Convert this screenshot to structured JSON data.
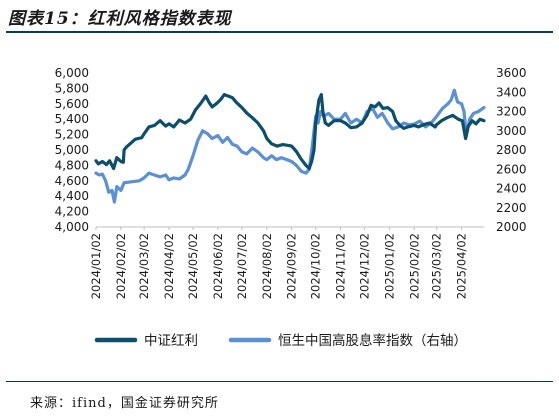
{
  "header": {
    "title": "图表15：红利风格指数表现"
  },
  "footer": {
    "source": "来源：ifind，国金证券研究所"
  },
  "chart_data": {
    "type": "line",
    "title": "图表15：红利风格指数表现",
    "x_ticks": [
      "2024/01/02",
      "2024/02/02",
      "2024/03/02",
      "2024/04/02",
      "2024/05/02",
      "2024/06/02",
      "2024/07/02",
      "2024/08/02",
      "2024/09/02",
      "2024/10/02",
      "2024/11/02",
      "2024/12/02",
      "2025/01/02",
      "2025/02/02",
      "2025/03/02",
      "2025/04/02"
    ],
    "x_range": [
      "2024-01-02",
      "2025-04-30"
    ],
    "left_axis": {
      "ylim": [
        4000,
        6000
      ],
      "ticks": [
        "4,000",
        "4,200",
        "4,400",
        "4,600",
        "4,800",
        "5,000",
        "5,200",
        "5,400",
        "5,600",
        "5,800",
        "6,000"
      ]
    },
    "right_axis": {
      "ylim": [
        2000,
        3600
      ],
      "ticks": [
        "2000",
        "2200",
        "2400",
        "2600",
        "2800",
        "3000",
        "3200",
        "3400",
        "3600"
      ]
    },
    "grid": false,
    "legend_position": "bottom",
    "series": [
      {
        "name": "中证红利",
        "axis": "left",
        "color": "#0b4f6c",
        "points": [
          [
            "2024-01-02",
            4860
          ],
          [
            "2024-01-05",
            4820
          ],
          [
            "2024-01-10",
            4850
          ],
          [
            "2024-01-15",
            4810
          ],
          [
            "2024-01-19",
            4860
          ],
          [
            "2024-01-24",
            4760
          ],
          [
            "2024-01-28",
            4900
          ],
          [
            "2024-02-02",
            4850
          ],
          [
            "2024-02-05",
            4840
          ],
          [
            "2024-02-06",
            5000
          ],
          [
            "2024-02-09",
            5040
          ],
          [
            "2024-02-20",
            5140
          ],
          [
            "2024-02-28",
            5160
          ],
          [
            "2024-03-02",
            5210
          ],
          [
            "2024-03-08",
            5300
          ],
          [
            "2024-03-15",
            5320
          ],
          [
            "2024-03-22",
            5380
          ],
          [
            "2024-03-29",
            5310
          ],
          [
            "2024-04-02",
            5340
          ],
          [
            "2024-04-08",
            5300
          ],
          [
            "2024-04-15",
            5390
          ],
          [
            "2024-04-22",
            5350
          ],
          [
            "2024-04-29",
            5400
          ],
          [
            "2024-05-05",
            5520
          ],
          [
            "2024-05-12",
            5610
          ],
          [
            "2024-05-18",
            5700
          ],
          [
            "2024-05-22",
            5620
          ],
          [
            "2024-05-26",
            5560
          ],
          [
            "2024-05-31",
            5600
          ],
          [
            "2024-06-05",
            5650
          ],
          [
            "2024-06-10",
            5720
          ],
          [
            "2024-06-15",
            5700
          ],
          [
            "2024-06-20",
            5680
          ],
          [
            "2024-06-25",
            5620
          ],
          [
            "2024-07-02",
            5550
          ],
          [
            "2024-07-08",
            5480
          ],
          [
            "2024-07-15",
            5420
          ],
          [
            "2024-07-22",
            5350
          ],
          [
            "2024-07-29",
            5250
          ],
          [
            "2024-08-02",
            5150
          ],
          [
            "2024-08-08",
            5080
          ],
          [
            "2024-08-15",
            5050
          ],
          [
            "2024-08-22",
            5070
          ],
          [
            "2024-08-29",
            5060
          ],
          [
            "2024-09-02",
            5050
          ],
          [
            "2024-09-08",
            4980
          ],
          [
            "2024-09-14",
            4880
          ],
          [
            "2024-09-20",
            4800
          ],
          [
            "2024-09-24",
            4760
          ],
          [
            "2024-09-27",
            4850
          ],
          [
            "2024-09-30",
            5000
          ],
          [
            "2024-10-02",
            5350
          ],
          [
            "2024-10-06",
            5650
          ],
          [
            "2024-10-09",
            5720
          ],
          [
            "2024-10-11",
            5500
          ],
          [
            "2024-10-14",
            5350
          ],
          [
            "2024-10-18",
            5320
          ],
          [
            "2024-10-25",
            5380
          ],
          [
            "2024-11-02",
            5380
          ],
          [
            "2024-11-08",
            5350
          ],
          [
            "2024-11-15",
            5290
          ],
          [
            "2024-11-22",
            5300
          ],
          [
            "2024-11-29",
            5350
          ],
          [
            "2024-12-05",
            5450
          ],
          [
            "2024-12-10",
            5580
          ],
          [
            "2024-12-15",
            5560
          ],
          [
            "2024-12-20",
            5610
          ],
          [
            "2024-12-25",
            5540
          ],
          [
            "2024-12-31",
            5550
          ],
          [
            "2025-01-06",
            5500
          ],
          [
            "2025-01-10",
            5380
          ],
          [
            "2025-01-15",
            5320
          ],
          [
            "2025-01-20",
            5280
          ],
          [
            "2025-01-25",
            5300
          ],
          [
            "2025-02-02",
            5320
          ],
          [
            "2025-02-07",
            5300
          ],
          [
            "2025-02-14",
            5330
          ],
          [
            "2025-02-21",
            5350
          ],
          [
            "2025-02-28",
            5300
          ],
          [
            "2025-03-02",
            5330
          ],
          [
            "2025-03-08",
            5380
          ],
          [
            "2025-03-15",
            5420
          ],
          [
            "2025-03-22",
            5450
          ],
          [
            "2025-03-29",
            5400
          ],
          [
            "2025-04-03",
            5380
          ],
          [
            "2025-04-07",
            5150
          ],
          [
            "2025-04-10",
            5300
          ],
          [
            "2025-04-15",
            5380
          ],
          [
            "2025-04-20",
            5340
          ],
          [
            "2025-04-25",
            5400
          ],
          [
            "2025-04-30",
            5380
          ]
        ]
      },
      {
        "name": "恒生中国高股息率指数（右轴）",
        "axis": "right",
        "color": "#5b8fd6",
        "points": [
          [
            "2024-01-02",
            2560
          ],
          [
            "2024-01-06",
            2540
          ],
          [
            "2024-01-10",
            2550
          ],
          [
            "2024-01-14",
            2480
          ],
          [
            "2024-01-18",
            2360
          ],
          [
            "2024-01-22",
            2380
          ],
          [
            "2024-01-25",
            2260
          ],
          [
            "2024-01-28",
            2420
          ],
          [
            "2024-02-02",
            2380
          ],
          [
            "2024-02-06",
            2460
          ],
          [
            "2024-02-15",
            2470
          ],
          [
            "2024-02-25",
            2480
          ],
          [
            "2024-03-02",
            2510
          ],
          [
            "2024-03-08",
            2560
          ],
          [
            "2024-03-15",
            2540
          ],
          [
            "2024-03-22",
            2520
          ],
          [
            "2024-03-29",
            2540
          ],
          [
            "2024-04-02",
            2490
          ],
          [
            "2024-04-08",
            2510
          ],
          [
            "2024-04-15",
            2500
          ],
          [
            "2024-04-22",
            2540
          ],
          [
            "2024-04-26",
            2600
          ],
          [
            "2024-05-02",
            2740
          ],
          [
            "2024-05-08",
            2900
          ],
          [
            "2024-05-14",
            3000
          ],
          [
            "2024-05-20",
            2970
          ],
          [
            "2024-05-26",
            2920
          ],
          [
            "2024-06-02",
            2950
          ],
          [
            "2024-06-08",
            2880
          ],
          [
            "2024-06-14",
            2930
          ],
          [
            "2024-06-20",
            2860
          ],
          [
            "2024-06-26",
            2840
          ],
          [
            "2024-07-02",
            2780
          ],
          [
            "2024-07-08",
            2760
          ],
          [
            "2024-07-15",
            2820
          ],
          [
            "2024-07-22",
            2780
          ],
          [
            "2024-07-29",
            2720
          ],
          [
            "2024-08-02",
            2700
          ],
          [
            "2024-08-08",
            2740
          ],
          [
            "2024-08-14",
            2700
          ],
          [
            "2024-08-20",
            2720
          ],
          [
            "2024-08-27",
            2700
          ],
          [
            "2024-09-02",
            2680
          ],
          [
            "2024-09-08",
            2640
          ],
          [
            "2024-09-14",
            2580
          ],
          [
            "2024-09-20",
            2560
          ],
          [
            "2024-09-24",
            2600
          ],
          [
            "2024-09-28",
            2850
          ],
          [
            "2024-10-02",
            3150
          ],
          [
            "2024-10-05",
            3080
          ],
          [
            "2024-10-08",
            3200
          ],
          [
            "2024-10-12",
            3150
          ],
          [
            "2024-10-18",
            3180
          ],
          [
            "2024-10-25",
            3120
          ],
          [
            "2024-11-02",
            3120
          ],
          [
            "2024-11-08",
            3180
          ],
          [
            "2024-11-15",
            3080
          ],
          [
            "2024-11-22",
            3120
          ],
          [
            "2024-11-29",
            3080
          ],
          [
            "2024-12-05",
            3200
          ],
          [
            "2024-12-12",
            3230
          ],
          [
            "2024-12-18",
            3140
          ],
          [
            "2024-12-24",
            3180
          ],
          [
            "2024-12-31",
            3080
          ],
          [
            "2025-01-06",
            3020
          ],
          [
            "2025-01-13",
            3040
          ],
          [
            "2025-01-20",
            3080
          ],
          [
            "2025-01-27",
            3060
          ],
          [
            "2025-02-02",
            3070
          ],
          [
            "2025-02-09",
            3100
          ],
          [
            "2025-02-16",
            3040
          ],
          [
            "2025-02-23",
            3080
          ],
          [
            "2025-03-02",
            3150
          ],
          [
            "2025-03-09",
            3230
          ],
          [
            "2025-03-16",
            3280
          ],
          [
            "2025-03-20",
            3320
          ],
          [
            "2025-03-24",
            3420
          ],
          [
            "2025-03-28",
            3300
          ],
          [
            "2025-04-02",
            3280
          ],
          [
            "2025-04-05",
            3200
          ],
          [
            "2025-04-08",
            2950
          ],
          [
            "2025-04-12",
            3120
          ],
          [
            "2025-04-17",
            3180
          ],
          [
            "2025-04-23",
            3200
          ],
          [
            "2025-04-30",
            3240
          ]
        ]
      }
    ]
  }
}
